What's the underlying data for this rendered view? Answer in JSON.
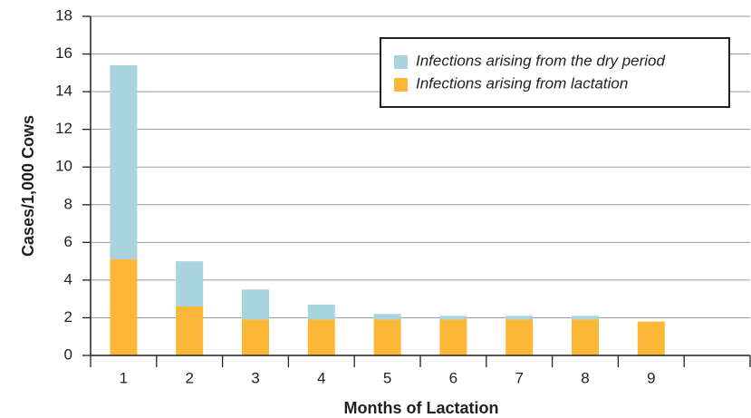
{
  "chart_data": {
    "type": "stacked_bar",
    "x_label": "Months of Lactation",
    "y_label": "Cases/1,000 Cows",
    "categories": [
      "1",
      "2",
      "3",
      "4",
      "5",
      "6",
      "7",
      "8",
      "9",
      null
    ],
    "series": [
      {
        "name": "Infections arising from the dry period",
        "color": "#a9d3dd",
        "values": [
          10.3,
          2.4,
          1.6,
          0.8,
          0.3,
          0.2,
          0.2,
          0.2,
          0,
          null
        ]
      },
      {
        "name": "Infections arising from lactation",
        "color": "#fbb735",
        "values": [
          5.1,
          2.6,
          1.9,
          1.9,
          1.9,
          1.9,
          1.9,
          1.9,
          1.8,
          null
        ]
      }
    ],
    "ylim": [
      0,
      18
    ],
    "yticks": [
      0,
      2,
      4,
      6,
      8,
      10,
      12,
      14,
      16,
      18
    ],
    "grid": true,
    "legend": "upper right"
  }
}
